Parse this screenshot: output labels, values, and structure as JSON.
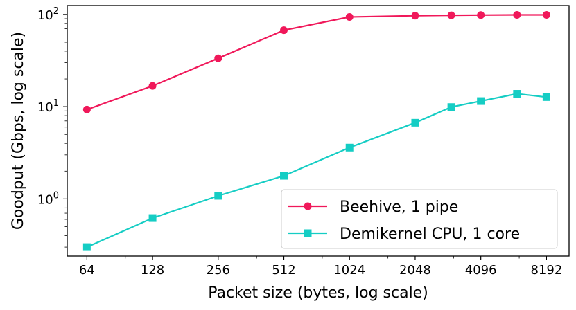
{
  "chart_data": {
    "type": "line",
    "title": "",
    "xlabel": "Packet size (bytes, log scale)",
    "ylabel": "Goodput (Gbps, log scale)",
    "xscale": "log2",
    "yscale": "log10",
    "xlim": [
      52,
      10400
    ],
    "ylim": [
      0.24,
      125
    ],
    "x_ticks": [
      64,
      128,
      256,
      512,
      1024,
      2048,
      4096,
      8192
    ],
    "x_tick_labels": [
      "64",
      "128",
      "256",
      "512",
      "1024",
      "2048",
      "4096",
      "8192"
    ],
    "y_ticks": [
      1,
      10,
      100
    ],
    "y_tick_labels": [
      {
        "base": "10",
        "exp": "0"
      },
      {
        "base": "10",
        "exp": "1"
      },
      {
        "base": "10",
        "exp": "2"
      }
    ],
    "grid": false,
    "legend_position": "lower-right",
    "series": [
      {
        "name": "Beehive, 1 pipe",
        "color": "#f0185a",
        "marker": "circle",
        "x": [
          64,
          128,
          256,
          512,
          1024,
          2048,
          3000,
          4096,
          6000,
          8192
        ],
        "y": [
          9.3,
          16.8,
          33.5,
          67.5,
          94,
          97,
          98,
          98.5,
          99,
          99
        ]
      },
      {
        "name": "Demikernel CPU, 1 core",
        "color": "#15cdc4",
        "marker": "square",
        "x": [
          64,
          128,
          256,
          512,
          1024,
          2048,
          3000,
          4096,
          6000,
          8192
        ],
        "y": [
          0.3,
          0.62,
          1.08,
          1.78,
          3.6,
          6.7,
          9.9,
          11.5,
          13.8,
          12.7
        ]
      }
    ]
  }
}
